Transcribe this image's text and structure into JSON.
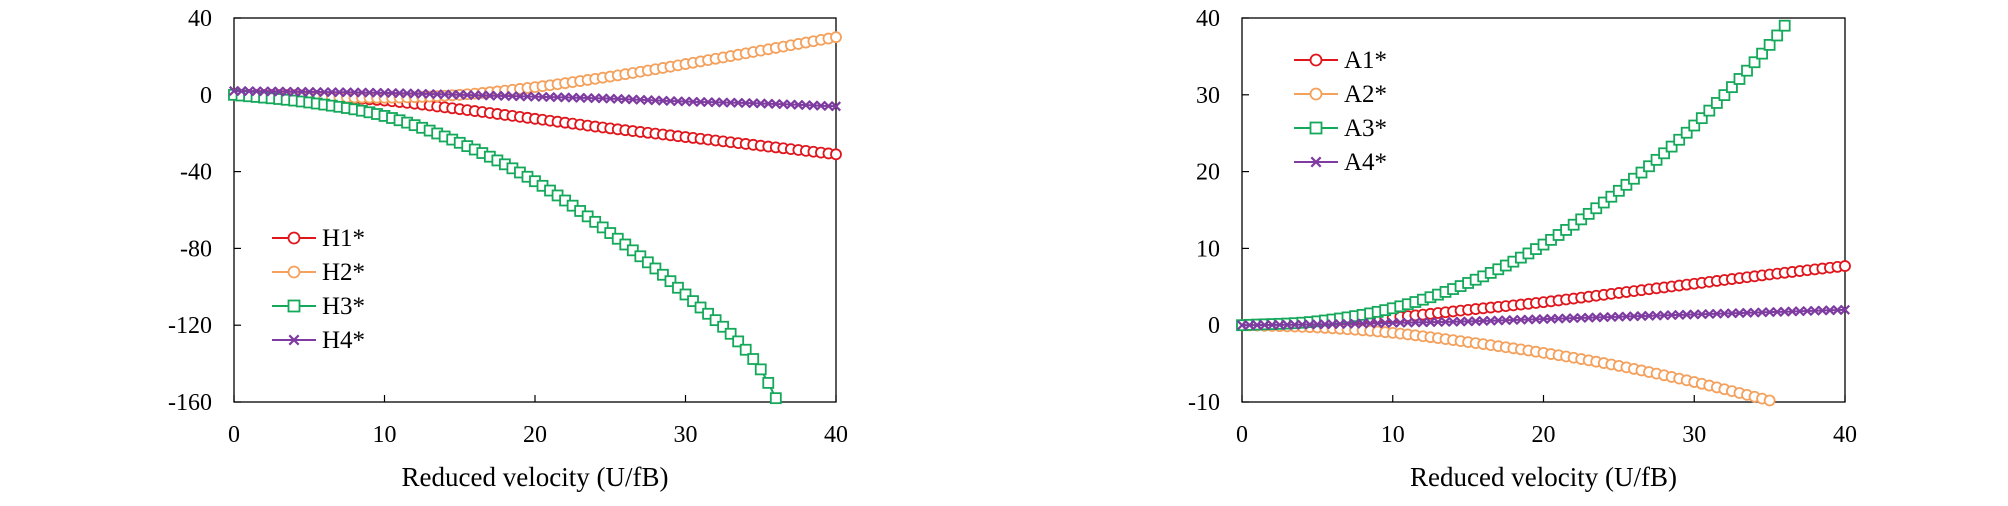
{
  "chart_data": [
    {
      "type": "line",
      "xlabel": "Reduced velocity (U/fB)",
      "ylabel": "",
      "xlim": [
        0,
        40
      ],
      "ylim": [
        -160,
        40
      ],
      "xticks": [
        0,
        10,
        20,
        30,
        40
      ],
      "yticks": [
        40,
        0,
        -40,
        -80,
        -120,
        -160
      ],
      "grid": false,
      "legend_position": "bottom-left",
      "series": [
        {
          "name": "H1*",
          "color": "#e0161d",
          "marker": "circle",
          "x": [
            0,
            5,
            10,
            15,
            20,
            25,
            30,
            35,
            40
          ],
          "values": [
            0,
            -0.5,
            -3,
            -7.5,
            -12.5,
            -17.5,
            -22,
            -26.5,
            -31
          ]
        },
        {
          "name": "H2*",
          "color": "#f4a15d",
          "marker": "circle",
          "x": [
            0,
            5,
            10,
            15,
            20,
            25,
            30,
            35,
            40
          ],
          "values": [
            0,
            -1,
            -1.5,
            0,
            4,
            9.5,
            16,
            23,
            30
          ]
        },
        {
          "name": "H3*",
          "color": "#14a85a",
          "marker": "square",
          "x": [
            0,
            5,
            10,
            15,
            20,
            25,
            30,
            35,
            36
          ],
          "values": [
            0,
            -4,
            -11,
            -25,
            -45,
            -72,
            -104,
            -143,
            -158
          ]
        },
        {
          "name": "H4*",
          "color": "#7e3ba0",
          "marker": "x",
          "x": [
            0,
            5,
            10,
            15,
            20,
            25,
            30,
            35,
            40
          ],
          "values": [
            2,
            1.5,
            1,
            0,
            -1,
            -2,
            -3.5,
            -4.5,
            -6
          ]
        }
      ]
    },
    {
      "type": "line",
      "xlabel": "Reduced velocity (U/fB)",
      "ylabel": "",
      "xlim": [
        0,
        40
      ],
      "ylim": [
        -10,
        40
      ],
      "xticks": [
        0,
        10,
        20,
        30,
        40
      ],
      "yticks": [
        40,
        30,
        20,
        10,
        0,
        -10
      ],
      "grid": false,
      "legend_position": "top-left",
      "series": [
        {
          "name": "A1*",
          "color": "#e0161d",
          "marker": "circle",
          "x": [
            0,
            5,
            10,
            15,
            20,
            25,
            30,
            35,
            40
          ],
          "values": [
            0,
            0.3,
            1,
            2,
            3,
            4.2,
            5.4,
            6.6,
            7.7
          ]
        },
        {
          "name": "A2*",
          "color": "#f4a15d",
          "marker": "circle",
          "x": [
            0,
            5,
            10,
            15,
            20,
            25,
            30,
            35
          ],
          "values": [
            0,
            -0.3,
            -1,
            -2.2,
            -3.6,
            -5.3,
            -7.4,
            -9.8
          ]
        },
        {
          "name": "A3*",
          "color": "#14a85a",
          "marker": "square",
          "x": [
            0,
            5,
            10,
            15,
            20,
            25,
            30,
            35,
            36
          ],
          "values": [
            0,
            0.5,
            2.2,
            5.5,
            10.5,
            17.5,
            26,
            36.5,
            39
          ]
        },
        {
          "name": "A4*",
          "color": "#7e3ba0",
          "marker": "x",
          "x": [
            0,
            5,
            10,
            15,
            20,
            25,
            30,
            35,
            40
          ],
          "values": [
            0,
            0.1,
            0.3,
            0.5,
            0.8,
            1.1,
            1.4,
            1.7,
            2
          ]
        }
      ]
    }
  ]
}
